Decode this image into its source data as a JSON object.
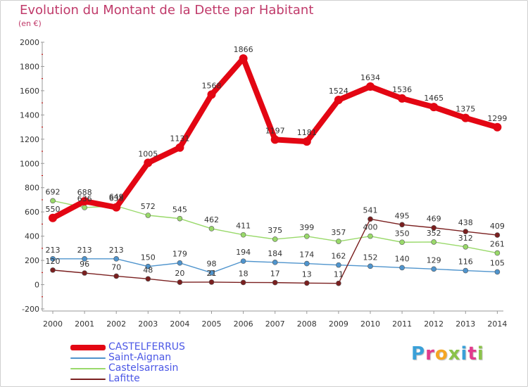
{
  "chart_data": {
    "type": "line",
    "title": "Evolution du Montant de la Dette par Habitant",
    "subtitle": "(en €)",
    "x": [
      "2000",
      "2001",
      "2002",
      "2003",
      "2004",
      "2005",
      "2006",
      "2007",
      "2008",
      "2009",
      "2010",
      "2011",
      "2012",
      "2013",
      "2014"
    ],
    "ylim": [
      -200,
      2000
    ],
    "yticks": [
      "-200",
      "0",
      "200",
      "400",
      "600",
      "800",
      "1000",
      "1200",
      "1400",
      "1600",
      "1800",
      "2000"
    ],
    "grid": false,
    "legend_position": "bottom-left",
    "series": [
      {
        "name": "CASTELFERRUS",
        "color": "#e30613",
        "values": [
          550,
          688,
          638,
          1005,
          1131,
          1568,
          1866,
          1197,
          1181,
          1524,
          1634,
          1536,
          1465,
          1375,
          1299
        ],
        "labels": [
          "550",
          "688",
          "638",
          "1005",
          "1131",
          "1568",
          "1866",
          "1197",
          "1181",
          "1524",
          "1634",
          "1536",
          "1465",
          "1375",
          "1299"
        ]
      },
      {
        "name": "Saint-Aignan",
        "color": "#4f94cd",
        "values": [
          213,
          213,
          213,
          150,
          179,
          98,
          194,
          184,
          174,
          162,
          152,
          140,
          129,
          116,
          105
        ],
        "labels": [
          "213",
          "213",
          "213",
          "150",
          "179",
          "98",
          "194",
          "184",
          "174",
          "162",
          "152",
          "140",
          "129",
          "116",
          "105"
        ]
      },
      {
        "name": "Castelsarrasin",
        "color": "#99d96a",
        "values": [
          692,
          636,
          649,
          572,
          545,
          462,
          411,
          375,
          399,
          357,
          400,
          350,
          352,
          312,
          261
        ],
        "labels": [
          "692",
          "636",
          "649",
          "572",
          "545",
          "462",
          "411",
          "375",
          "399",
          "357",
          "400",
          "350",
          "352",
          "312",
          "261"
        ]
      },
      {
        "name": "Lafitte",
        "color": "#7a1f1f",
        "values": [
          120,
          96,
          70,
          48,
          20,
          21,
          18,
          17,
          13,
          11,
          541,
          495,
          469,
          438,
          409
        ],
        "labels": [
          "120",
          "96",
          "70",
          "48",
          "20",
          "21",
          "18",
          "17",
          "13",
          "11",
          "541",
          "495",
          "469",
          "438",
          "409"
        ]
      }
    ]
  },
  "brand": {
    "letters": [
      "P",
      "r",
      "o",
      "x",
      "i",
      "t",
      "i"
    ],
    "colors": [
      "#3aa0d8",
      "#e23b8c",
      "#f5a623",
      "#8bc34a",
      "#3aa0d8",
      "#e23b8c",
      "#8bc34a"
    ]
  }
}
